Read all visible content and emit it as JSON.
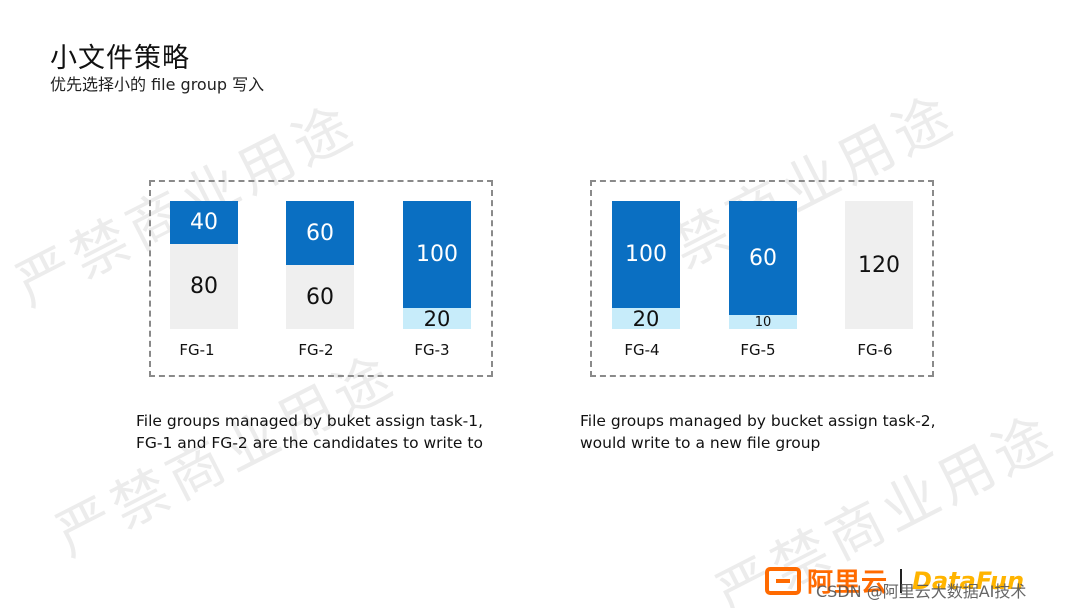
{
  "header": {
    "title": "小文件策略",
    "subtitle": "优先选择小的 file group 写入"
  },
  "watermark_text": "严禁商业用途",
  "colors": {
    "used": "#0a6fc2",
    "free": "#efefef",
    "small": "#c7ecfa",
    "brand": "#ff6a00"
  },
  "groups": [
    {
      "caption_line1": "File groups managed by buket assign task-1,",
      "caption_line2": "FG-1 and FG-2 are the candidates to write to",
      "file_groups": [
        {
          "label": "FG-1",
          "used": 40,
          "free": 80
        },
        {
          "label": "FG-2",
          "used": 60,
          "free": 60
        },
        {
          "label": "FG-3",
          "used": 100,
          "small": 20
        }
      ]
    },
    {
      "caption_line1": "File groups managed by bucket assign task-2,",
      "caption_line2": "would write to a new file group",
      "file_groups": [
        {
          "label": "FG-4",
          "used": 100,
          "small": 20
        },
        {
          "label": "FG-5",
          "used": 60,
          "small": 10
        },
        {
          "label": "FG-6",
          "free": 120
        }
      ]
    }
  ],
  "footer": {
    "brand_cn": "阿里云",
    "brand_en": "DataFun",
    "credit": "CSDN @阿里云大数据AI技术"
  }
}
